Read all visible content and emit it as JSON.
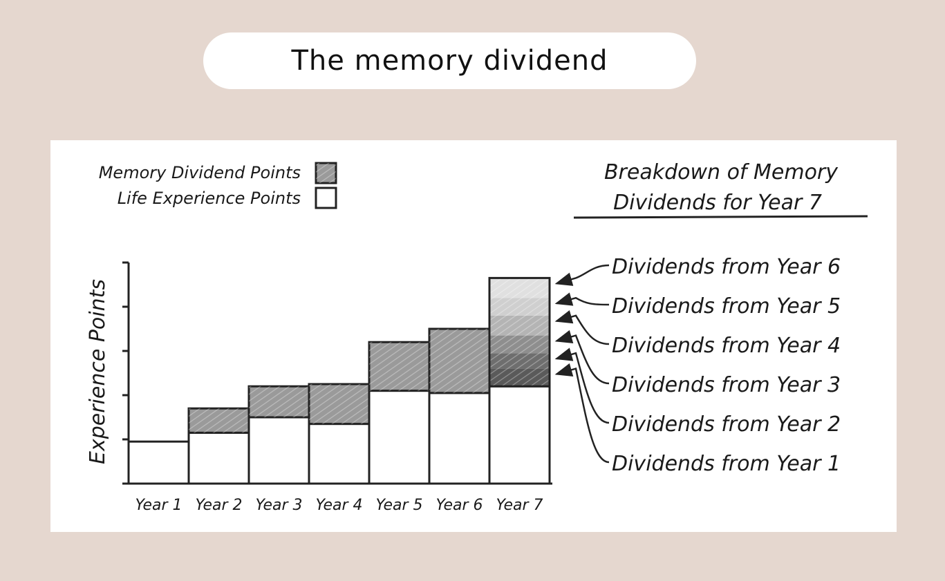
{
  "page": {
    "title": "The memory dividend"
  },
  "legend": {
    "items": [
      {
        "label": "Memory Dividend Points",
        "swatch": "#9a9a9a"
      },
      {
        "label": "Life Experience Points",
        "swatch": "#ffffff"
      }
    ]
  },
  "breakdown": {
    "title_line1": "Breakdown of Memory",
    "title_line2": "Dividends for Year 7",
    "labels": [
      "Dividends from Year 6",
      "Dividends from Year 5",
      "Dividends from Year 4",
      "Dividends from Year 3",
      "Dividends from Year 2",
      "Dividends from Year 1"
    ]
  },
  "colors": {
    "dividend": "#9a9a9a",
    "life": "#ffffff",
    "line": "#222222",
    "year7_layers": [
      "#e0e0e0",
      "#cfcfcf",
      "#b4b4b4",
      "#8e8e8e",
      "#6e6e6e",
      "#5a5a5a"
    ]
  },
  "chart_data": {
    "type": "bar",
    "stacked": true,
    "ylabel": "Experience Points",
    "xlabel": "",
    "categories": [
      "Year 1",
      "Year 2",
      "Year 3",
      "Year 4",
      "Year 5",
      "Year 6",
      "Year 7"
    ],
    "ylim": [
      0,
      5
    ],
    "grid": false,
    "legend_position": "top-left",
    "series": [
      {
        "name": "Life Experience Points",
        "values": [
          0.95,
          1.15,
          1.5,
          1.35,
          2.1,
          2.05,
          2.2
        ]
      },
      {
        "name": "Memory Dividend Points",
        "values": [
          0,
          0.55,
          0.7,
          0.9,
          1.1,
          1.45,
          2.45
        ]
      }
    ],
    "year7_breakdown": {
      "labels": [
        "Dividends from Year 1",
        "Dividends from Year 2",
        "Dividends from Year 3",
        "Dividends from Year 4",
        "Dividends from Year 5",
        "Dividends from Year 6"
      ],
      "values": [
        0.4,
        0.35,
        0.4,
        0.45,
        0.4,
        0.45
      ]
    }
  }
}
